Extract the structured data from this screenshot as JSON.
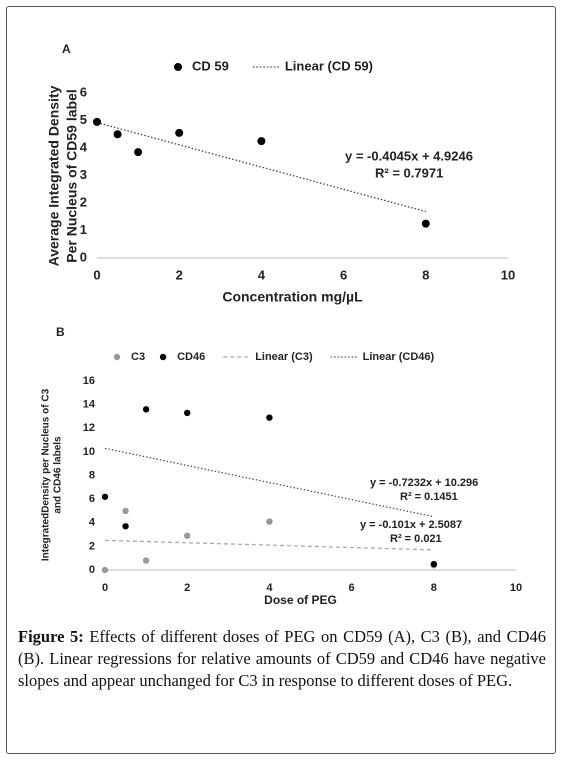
{
  "chart_data": [
    {
      "type": "scatter",
      "title": "A",
      "x": [
        0,
        0.5,
        1,
        2,
        4,
        8
      ],
      "series": [
        {
          "name": "CD 59",
          "color": "#000000",
          "values": [
            4.95,
            4.5,
            3.85,
            4.55,
            4.25,
            1.25
          ]
        }
      ],
      "trendlines": [
        {
          "name": "Linear (CD 59)",
          "color": "#444444",
          "dash": "dotted",
          "slope": -0.4045,
          "intercept": 4.9246,
          "equation": "y = -0.4045x + 4.9246",
          "r_squared": "R² = 0.7971"
        }
      ],
      "xlim": [
        0,
        10
      ],
      "xticks": [
        0,
        2,
        4,
        6,
        8,
        10
      ],
      "ylim": [
        0,
        6
      ],
      "yticks": [
        0,
        1,
        2,
        3,
        4,
        5,
        6
      ],
      "xlabel": "Concentration mg/µL",
      "ylabel": [
        "Average Integrated Density",
        "Per Nucleus of CD59 label"
      ]
    },
    {
      "type": "scatter",
      "title": "B",
      "x": [
        0,
        0.5,
        1,
        2,
        4,
        8
      ],
      "series": [
        {
          "name": "C3",
          "color": "#999999",
          "values": [
            0,
            5,
            0.8,
            2.9,
            4.1,
            0.4
          ]
        },
        {
          "name": "CD46",
          "color": "#000000",
          "values": [
            6.2,
            3.7,
            13.6,
            13.3,
            12.9,
            0.5
          ]
        }
      ],
      "trendlines": [
        {
          "name": "Linear (C3)",
          "color": "#aaaaaa",
          "dash": "dashed",
          "slope": -0.101,
          "intercept": 2.5087,
          "equation": "y = -0.101x + 2.5087",
          "r_squared": "R² = 0.021"
        },
        {
          "name": "Linear (CD46)",
          "color": "#555555",
          "dash": "dotted",
          "slope": -0.7232,
          "intercept": 10.296,
          "equation": "y = -0.7232x + 10.296",
          "r_squared": "R² = 0.1451"
        }
      ],
      "xlim": [
        0,
        10
      ],
      "xticks": [
        0,
        2,
        4,
        6,
        8,
        10
      ],
      "ylim": [
        0,
        16
      ],
      "yticks": [
        0,
        2,
        4,
        6,
        8,
        10,
        12,
        14,
        16
      ],
      "xlabel": "Dose of PEG",
      "ylabel": [
        "IntegratedDensity per Nucleus of C3",
        "and CD46 labels"
      ]
    }
  ],
  "caption": {
    "label": "Figure 5:",
    "text": "Effects of different doses of PEG on CD59 (A), C3 (B), and CD46 (B). Linear regressions for relative amounts of CD59 and CD46 have negative slopes and appear unchanged for C3 in response to different doses of PEG."
  }
}
